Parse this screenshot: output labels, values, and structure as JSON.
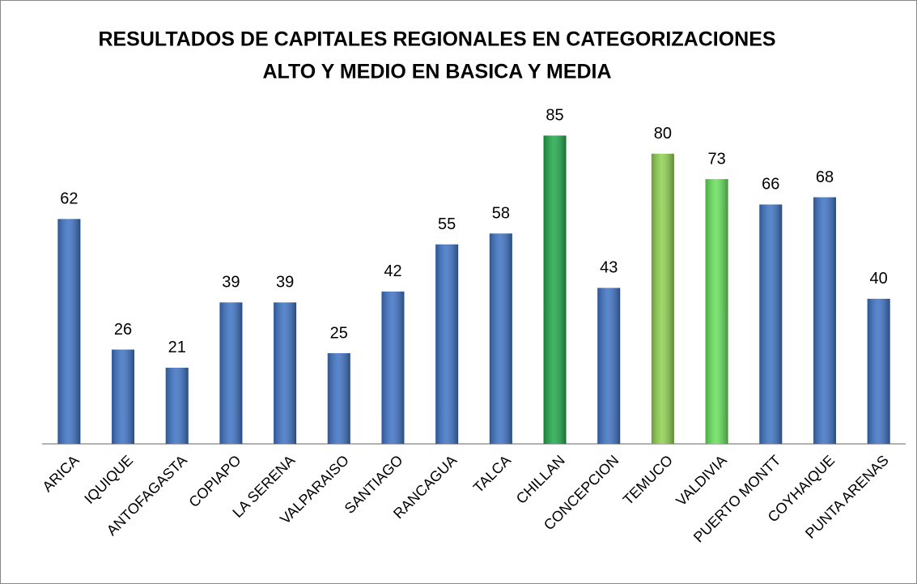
{
  "chart_data": {
    "type": "bar",
    "title": [
      "RESULTADOS DE CAPITALES REGIONALES EN CATEGORIZACIONES",
      "ALTO Y MEDIO EN BASICA Y MEDIA"
    ],
    "categories": [
      "ARICA",
      "IQUIQUE",
      "ANTOFAGASTA",
      "COPIAPO",
      "LA SERENA",
      "VALPARAISO",
      "SANTIAGO",
      "RANCAGUA",
      "TALCA",
      "CHILLAN",
      "CONCEPCION",
      "TEMUCO",
      "VALDIVIA",
      "PUERTO MONTT",
      "COYHAIQUE",
      "PUNTA ARENAS"
    ],
    "values": [
      62,
      26,
      21,
      39,
      39,
      25,
      42,
      55,
      58,
      85,
      43,
      80,
      73,
      66,
      68,
      40
    ],
    "colors": [
      "#3d72c4",
      "#3d72c4",
      "#3d72c4",
      "#3d72c4",
      "#3d72c4",
      "#3d72c4",
      "#3d72c4",
      "#3d72c4",
      "#3d72c4",
      "#1fa84a",
      "#3d72c4",
      "#8fd14f",
      "#66e05a",
      "#3d72c4",
      "#3d72c4",
      "#3d72c4"
    ],
    "ylim": [
      0,
      90
    ]
  }
}
